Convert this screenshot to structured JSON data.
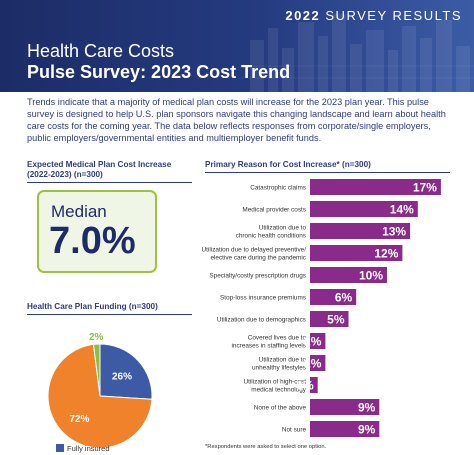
{
  "header": {
    "survey_tag_year": "2022",
    "survey_tag_text": "SURVEY RESULTS",
    "title_line1": "Health Care Costs",
    "title_line2": "Pulse Survey: 2023 Cost Trend"
  },
  "intro": "Trends indicate that a majority of medical plan costs will increase for the 2023 plan year. This pulse survey is designed to help U.S. plan sponsors navigate this changing landscape and learn about health care costs for the coming year. The data below reflects responses from corporate/single employers, public employers/governmental entities and multiemployer benefit funds.",
  "expected": {
    "heading_line1": "Expected Medical Plan Cost Increase",
    "heading_line2": "(2022-2023) (n=300)",
    "median_label": "Median",
    "median_value": "7.0%"
  },
  "funding": {
    "heading": "Health Care Plan Funding (n=300)",
    "legend_label": "Fully insured"
  },
  "reasons": {
    "heading": "Primary Reason for Cost Increase* (n=300)",
    "footnote": "*Respondents were asked to select one option."
  },
  "colors": {
    "navy": "#2e3a86",
    "purple": "#8a2a8b",
    "pie_blue": "#3d5aa5",
    "pie_orange": "#f0822b",
    "pie_green": "#8cbf3f",
    "median_border": "#9cc33e"
  },
  "chart_data": [
    {
      "type": "pie",
      "title": "Health Care Plan Funding (n=300)",
      "slices": [
        {
          "label": "Fully insured",
          "value": 26,
          "display": "26%",
          "color": "#3d5aa5"
        },
        {
          "label": "",
          "value": 72,
          "display": "72%",
          "color": "#f0822b"
        },
        {
          "label": "",
          "value": 2,
          "display": "2%",
          "color": "#8cbf3f"
        }
      ]
    },
    {
      "type": "bar",
      "orientation": "horizontal",
      "title": "Primary Reason for Cost Increase* (n=300)",
      "categories": [
        [
          "Catastrophic claims"
        ],
        [
          "Medical provider costs"
        ],
        [
          "Utilization due to",
          "chronic health conditions"
        ],
        [
          "Utilization due to delayed preventive/",
          "elective care during the pandemic"
        ],
        [
          "Specialty/costly prescription drugs"
        ],
        [
          "Stop-loss insurance premiums"
        ],
        [
          "Utilization due to demographics"
        ],
        [
          "Covered lives due to",
          "increases in staffing levels"
        ],
        [
          "Utilization due to",
          "unhealthy lifestyles"
        ],
        [
          "Utilization of high-cost",
          "medical technology"
        ],
        [
          "None of the above"
        ],
        [
          "Not sure"
        ]
      ],
      "values": [
        17,
        14,
        13,
        12,
        10,
        6,
        5,
        2,
        2,
        1,
        9,
        9
      ],
      "value_labels": [
        "17%",
        "14%",
        "13%",
        "12%",
        "10%",
        "6%",
        "5%",
        "2%",
        "2%",
        "1%",
        "9%",
        "9%"
      ],
      "color": "#8a2a8b"
    }
  ]
}
